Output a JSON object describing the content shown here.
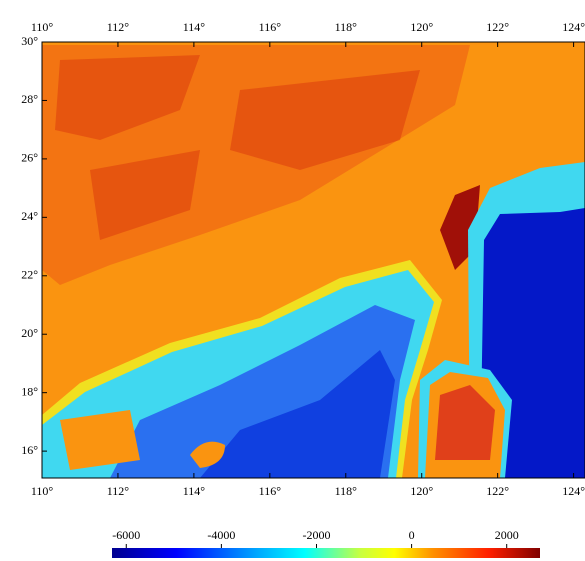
{
  "chart_data": {
    "type": "heatmap",
    "xlim": [
      110,
      124.3
    ],
    "ylim": [
      15.08,
      30
    ],
    "xticks": [
      {
        "value": 110,
        "label": "110°"
      },
      {
        "value": 112,
        "label": "112°"
      },
      {
        "value": 114,
        "label": "114°"
      },
      {
        "value": 116,
        "label": "116°"
      },
      {
        "value": 118,
        "label": "118°"
      },
      {
        "value": 120,
        "label": "120°"
      },
      {
        "value": 122,
        "label": "122°"
      },
      {
        "value": 124,
        "label": "124°"
      }
    ],
    "yticks": [
      {
        "value": 30,
        "label": "30°"
      },
      {
        "value": 28,
        "label": "28°"
      },
      {
        "value": 26,
        "label": "26°"
      },
      {
        "value": 24,
        "label": "24°"
      },
      {
        "value": 22,
        "label": "22°"
      },
      {
        "value": 20,
        "label": "20°"
      },
      {
        "value": 18,
        "label": "18°"
      },
      {
        "value": 16,
        "label": "16°"
      }
    ],
    "colorbar": {
      "clim": [
        -6300,
        2700
      ],
      "ticks": [
        -6000,
        -4000,
        -2000,
        0,
        2000
      ]
    }
  }
}
